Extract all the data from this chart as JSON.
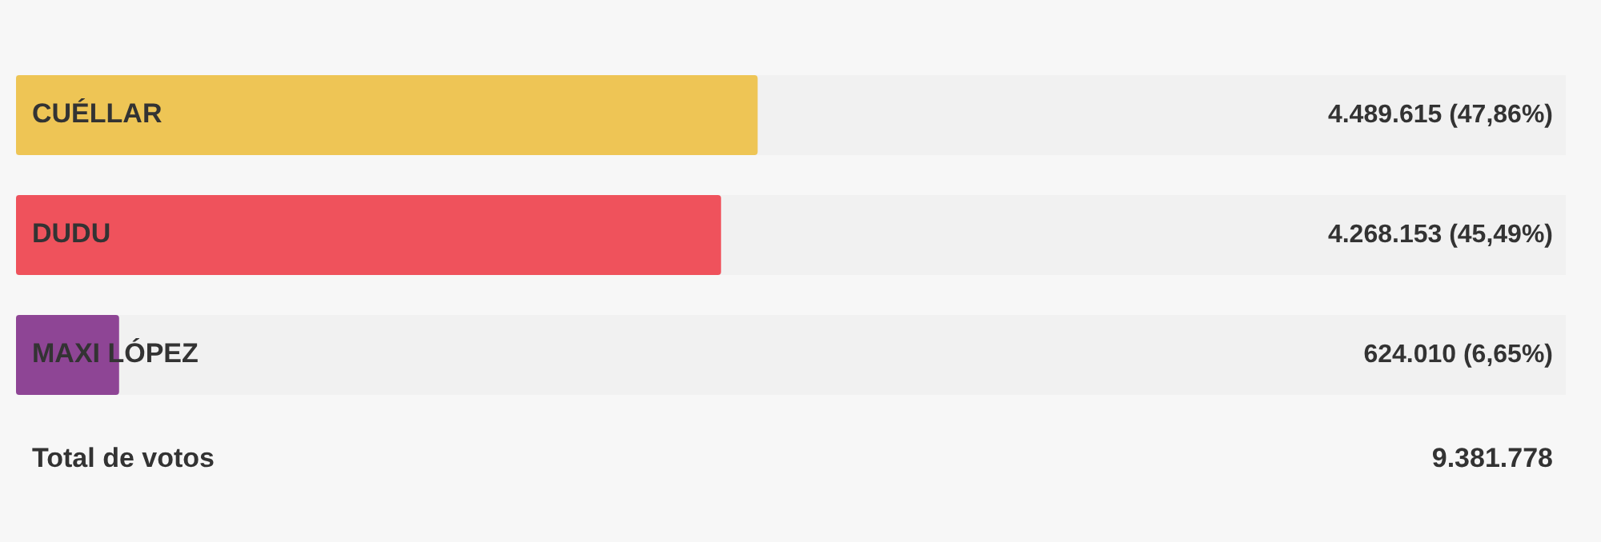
{
  "chart_data": {
    "type": "bar",
    "orientation": "horizontal",
    "categories": [
      "CUÉLLAR",
      "DUDU",
      "MAXI LÓPEZ"
    ],
    "values": [
      4489615,
      4268153,
      624010
    ],
    "colors": [
      "#eec555",
      "#ef525c",
      "#8e4595"
    ],
    "value_labels": [
      "4.489.615 (47,86%)",
      "4.268.153 (45,49%)",
      "624.010 (6,65%)"
    ],
    "xlim": [
      0,
      9381778
    ],
    "tick_labels": false,
    "grid": false,
    "legend": false,
    "annotations": [
      "Total de votos",
      "9.381.778"
    ]
  }
}
